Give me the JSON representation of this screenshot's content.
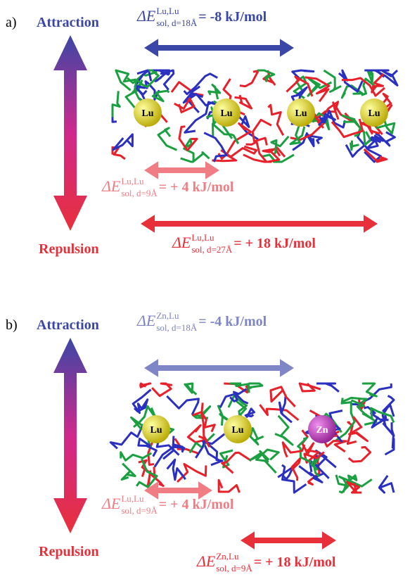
{
  "panels": [
    {
      "label": "a)",
      "attraction": "Attraction",
      "repulsion": "Repulsion",
      "ions": [
        "Lu",
        "Lu",
        "Lu",
        "Lu"
      ],
      "energies": [
        {
          "symbol": "ΔE",
          "sup": "Lu,Lu",
          "sub": "sol, d=18Å",
          "value": "= -8 kJ/mol",
          "color": "#3b47a6"
        },
        {
          "symbol": "ΔE",
          "sup": "Lu,Lu",
          "sub": "sol, d=9Å",
          "value": "= + 4 kJ/mol",
          "color": "#f07c84"
        },
        {
          "symbol": "ΔE",
          "sup": "Lu,Lu",
          "sub": "sol, d=27Å",
          "value": "= + 18 kJ/mol",
          "color": "#e8303a"
        }
      ]
    },
    {
      "label": "b)",
      "attraction": "Attraction",
      "repulsion": "Repulsion",
      "ions": [
        "Lu",
        "Lu",
        "Zn"
      ],
      "energies": [
        {
          "symbol": "ΔE",
          "sup": "Zn,Lu",
          "sub": "sol, d=18Å",
          "value": "= -4 kJ/mol",
          "color": "#7f86c6"
        },
        {
          "symbol": "ΔE",
          "sup": "Lu,Lu",
          "sub": "sol, d=9Å",
          "value": "= + 4 kJ/mol",
          "color": "#f07c84"
        },
        {
          "symbol": "ΔE",
          "sup": "Zn,Lu",
          "sub": "sol, d=9Å",
          "value": "= + 18 kJ/mol",
          "color": "#e8303a"
        }
      ]
    }
  ]
}
